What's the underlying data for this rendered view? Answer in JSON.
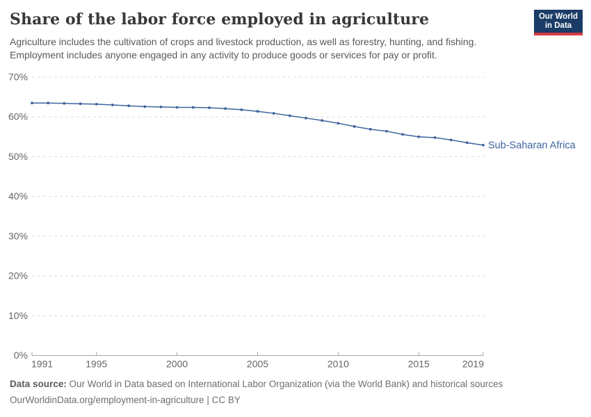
{
  "header": {
    "title": "Share of the labor force employed in agriculture",
    "subtitle_lines": [
      "Agriculture includes the cultivation of crops and livestock production, as well as forestry, hunting, and fishing.",
      "Employment includes anyone engaged in any activity to produce goods or services for pay or profit."
    ],
    "logo": {
      "line1": "Our World",
      "line2": "in Data",
      "background_color": "#1a3c66",
      "accent_color": "#d93a3f"
    }
  },
  "chart_data": {
    "type": "line",
    "title": "Share of the labor force employed in agriculture",
    "xlabel": "",
    "ylabel": "",
    "xlim": [
      1991,
      2019
    ],
    "ylim": [
      0,
      70
    ],
    "xticks": [
      1991,
      1995,
      2000,
      2005,
      2010,
      2015,
      2019
    ],
    "yticks": [
      0,
      10,
      20,
      30,
      40,
      50,
      60,
      70
    ],
    "ytick_suffix": "%",
    "grid": "horizontal-dashed",
    "legend_position": "end-of-line-label",
    "x": [
      1991,
      1992,
      1993,
      1994,
      1995,
      1996,
      1997,
      1998,
      1999,
      2000,
      2001,
      2002,
      2003,
      2004,
      2005,
      2006,
      2007,
      2008,
      2009,
      2010,
      2011,
      2012,
      2013,
      2014,
      2015,
      2016,
      2017,
      2018,
      2019
    ],
    "series": [
      {
        "name": "Sub-Saharan Africa",
        "color": "#3e649e",
        "values": [
          63.5,
          63.5,
          63.4,
          63.3,
          63.2,
          63.0,
          62.8,
          62.6,
          62.5,
          62.4,
          62.4,
          62.3,
          62.1,
          61.8,
          61.4,
          60.9,
          60.3,
          59.7,
          59.1,
          58.4,
          57.6,
          56.9,
          56.4,
          55.6,
          55.0,
          54.8,
          54.2,
          53.5,
          52.9
        ]
      }
    ]
  },
  "footer": {
    "source_label": "Data source:",
    "source_text": " Our World in Data based on International Labor Organization (via the World Bank) and historical sources",
    "link_text": "OurWorldinData.org/employment-in-agriculture",
    "license_text": " | CC BY"
  },
  "colors": {
    "title": "#383838",
    "subtitle": "#595959",
    "axis_labels": "#666666",
    "gridline": "#dcdcdc",
    "axis_line": "#a5a5a5",
    "series_line": "#3e649e"
  }
}
